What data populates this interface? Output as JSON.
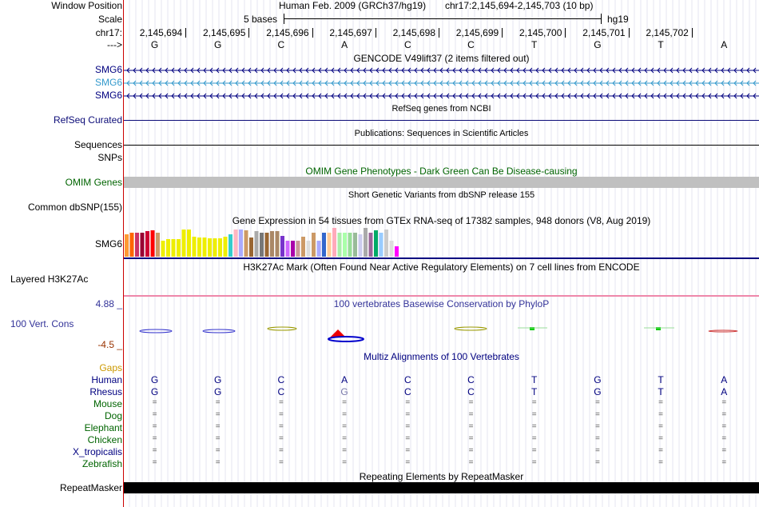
{
  "header": {
    "window_position_label": "Window Position",
    "assembly_text": "Human Feb. 2009 (GRCh37/hg19)",
    "position_text": "chr17:2,145,694-2,145,703 (10 bp)",
    "scale_label": "Scale",
    "scale_bar_text": "5 bases",
    "scale_db": "hg19",
    "chrom_label": "chr17:",
    "strand_label": "--->",
    "coordinates": [
      "2,145,694",
      "2,145,695",
      "2,145,696",
      "2,145,697",
      "2,145,698",
      "2,145,699",
      "2,145,700",
      "2,145,701",
      "2,145,702"
    ]
  },
  "sequence": [
    "G",
    "G",
    "C",
    "A",
    "C",
    "C",
    "T",
    "G",
    "T",
    "A"
  ],
  "tracks": {
    "gencode": {
      "title": "GENCODE V49lift37 (2 items filtered out)",
      "items": [
        {
          "label": "SMG6",
          "color": "#000080"
        },
        {
          "label": "SMG6",
          "color": "#3399cc"
        },
        {
          "label": "SMG6",
          "color": "#000080"
        }
      ]
    },
    "refseq": {
      "title": "RefSeq genes from NCBI",
      "label": "RefSeq Curated",
      "color": "#0c0c78"
    },
    "publications": {
      "title": "Publications: Sequences in Scientific Articles",
      "label": "Sequences"
    },
    "snps_label": "SNPs",
    "omim": {
      "title": "OMIM Gene Phenotypes - Dark Green Can Be Disease-causing",
      "label": "OMIM Genes",
      "color": "#006400"
    },
    "dbsnp": {
      "title": "Short Genetic Variants from dbSNP release 155",
      "label": "Common dbSNP(155)"
    },
    "gtex": {
      "title": "Gene Expression in 54 tissues from GTEx RNA-seq of 17382 samples, 948 donors (V8, Aug 2019)",
      "label": "SMG6",
      "bars": [
        {
          "c": "#ff9933",
          "v": 28
        },
        {
          "c": "#ff6600",
          "v": 30
        },
        {
          "c": "#cc3366",
          "v": 30
        },
        {
          "c": "#990033",
          "v": 30
        },
        {
          "c": "#cc0033",
          "v": 32
        },
        {
          "c": "#ff0000",
          "v": 33
        },
        {
          "c": "#cc9966",
          "v": 30
        },
        {
          "c": "#eeee00",
          "v": 20
        },
        {
          "c": "#eeee00",
          "v": 22
        },
        {
          "c": "#eeee00",
          "v": 22
        },
        {
          "c": "#eeee00",
          "v": 22
        },
        {
          "c": "#eeee00",
          "v": 34
        },
        {
          "c": "#eeee00",
          "v": 34
        },
        {
          "c": "#eeee00",
          "v": 25
        },
        {
          "c": "#eeee00",
          "v": 24
        },
        {
          "c": "#eeee00",
          "v": 24
        },
        {
          "c": "#eeee00",
          "v": 23
        },
        {
          "c": "#eeee00",
          "v": 23
        },
        {
          "c": "#eeee00",
          "v": 23
        },
        {
          "c": "#eeee00",
          "v": 25
        },
        {
          "c": "#33cccc",
          "v": 28
        },
        {
          "c": "#ffb6c1",
          "v": 34
        },
        {
          "c": "#aaaaff",
          "v": 34
        },
        {
          "c": "#cc9966",
          "v": 33
        },
        {
          "c": "#996633",
          "v": 24
        },
        {
          "c": "#aaaaaa",
          "v": 32
        },
        {
          "c": "#777777",
          "v": 30
        },
        {
          "c": "#996633",
          "v": 30
        },
        {
          "c": "#aa8866",
          "v": 32
        },
        {
          "c": "#aa8866",
          "v": 32
        },
        {
          "c": "#7733cc",
          "v": 26
        },
        {
          "c": "#cc66ff",
          "v": 20
        },
        {
          "c": "#aa00aa",
          "v": 20
        },
        {
          "c": "#cc9999",
          "v": 20
        },
        {
          "c": "#cc9966",
          "v": 25
        },
        {
          "c": "#dddddd",
          "v": 20
        },
        {
          "c": "#cc9966",
          "v": 30
        },
        {
          "c": "#aaaaff",
          "v": 20
        },
        {
          "c": "#3366cc",
          "v": 30
        },
        {
          "c": "#ffcc99",
          "v": 30
        },
        {
          "c": "#ffaabb",
          "v": 36
        },
        {
          "c": "#aaeeaa",
          "v": 30
        },
        {
          "c": "#aaffaa",
          "v": 30
        },
        {
          "c": "#99dd99",
          "v": 30
        },
        {
          "c": "#99bb99",
          "v": 30
        },
        {
          "c": "#ccccee",
          "v": 28
        },
        {
          "c": "#aaaaaa",
          "v": 36
        },
        {
          "c": "#996699",
          "v": 30
        },
        {
          "c": "#00aa66",
          "v": 33
        },
        {
          "c": "#99ccff",
          "v": 30
        },
        {
          "c": "#cccccc",
          "v": 34
        },
        {
          "c": "#dddddd",
          "v": 20
        },
        {
          "c": "#ff00ff",
          "v": 13
        },
        {
          "c": "#ffffff",
          "v": 0
        }
      ]
    },
    "h3k27ac": {
      "title": "H3K27Ac Mark (Often Found Near Active Regulatory Elements) on 7 cell lines from ENCODE",
      "label": "Layered H3K27Ac"
    },
    "conservation": {
      "title": "100 vertebrates Basewise Conservation by PhyloP",
      "label": "100 Vert. Cons",
      "max_label": "4.88 _",
      "min_label": "-4.5 _",
      "color": "#333399"
    },
    "multiz": {
      "title": "Multiz Alignments of 100 Vertebrates",
      "gaps_label": "Gaps",
      "species": [
        {
          "name": "Human",
          "color": "#000080",
          "row": [
            "G",
            "G",
            "C",
            "A",
            "C",
            "C",
            "T",
            "G",
            "T",
            "A"
          ]
        },
        {
          "name": "Rhesus",
          "color": "#000080",
          "row": [
            "G",
            "G",
            "C",
            "G",
            "C",
            "C",
            "T",
            "G",
            "T",
            "A"
          ]
        },
        {
          "name": "Mouse",
          "color": "#006400",
          "row": [
            "=",
            "=",
            "=",
            "=",
            "=",
            "=",
            "=",
            "=",
            "=",
            "="
          ]
        },
        {
          "name": "Dog",
          "color": "#006400",
          "row": [
            "=",
            "=",
            "=",
            "=",
            "=",
            "=",
            "=",
            "=",
            "=",
            "="
          ]
        },
        {
          "name": "Elephant",
          "color": "#006400",
          "row": [
            "=",
            "=",
            "=",
            "=",
            "=",
            "=",
            "=",
            "=",
            "=",
            "="
          ]
        },
        {
          "name": "Chicken",
          "color": "#006400",
          "row": [
            "=",
            "=",
            "=",
            "=",
            "=",
            "=",
            "=",
            "=",
            "=",
            "="
          ]
        },
        {
          "name": "X_tropicalis",
          "color": "#000080",
          "row": [
            "=",
            "=",
            "=",
            "=",
            "=",
            "=",
            "=",
            "=",
            "=",
            "="
          ]
        },
        {
          "name": "Zebrafish",
          "color": "#006400",
          "row": [
            "=",
            "=",
            "=",
            "=",
            "=",
            "=",
            "=",
            "=",
            "=",
            "="
          ]
        }
      ]
    },
    "repeatmasker": {
      "title": "Repeating Elements by RepeatMasker",
      "label": "RepeatMasker"
    }
  }
}
